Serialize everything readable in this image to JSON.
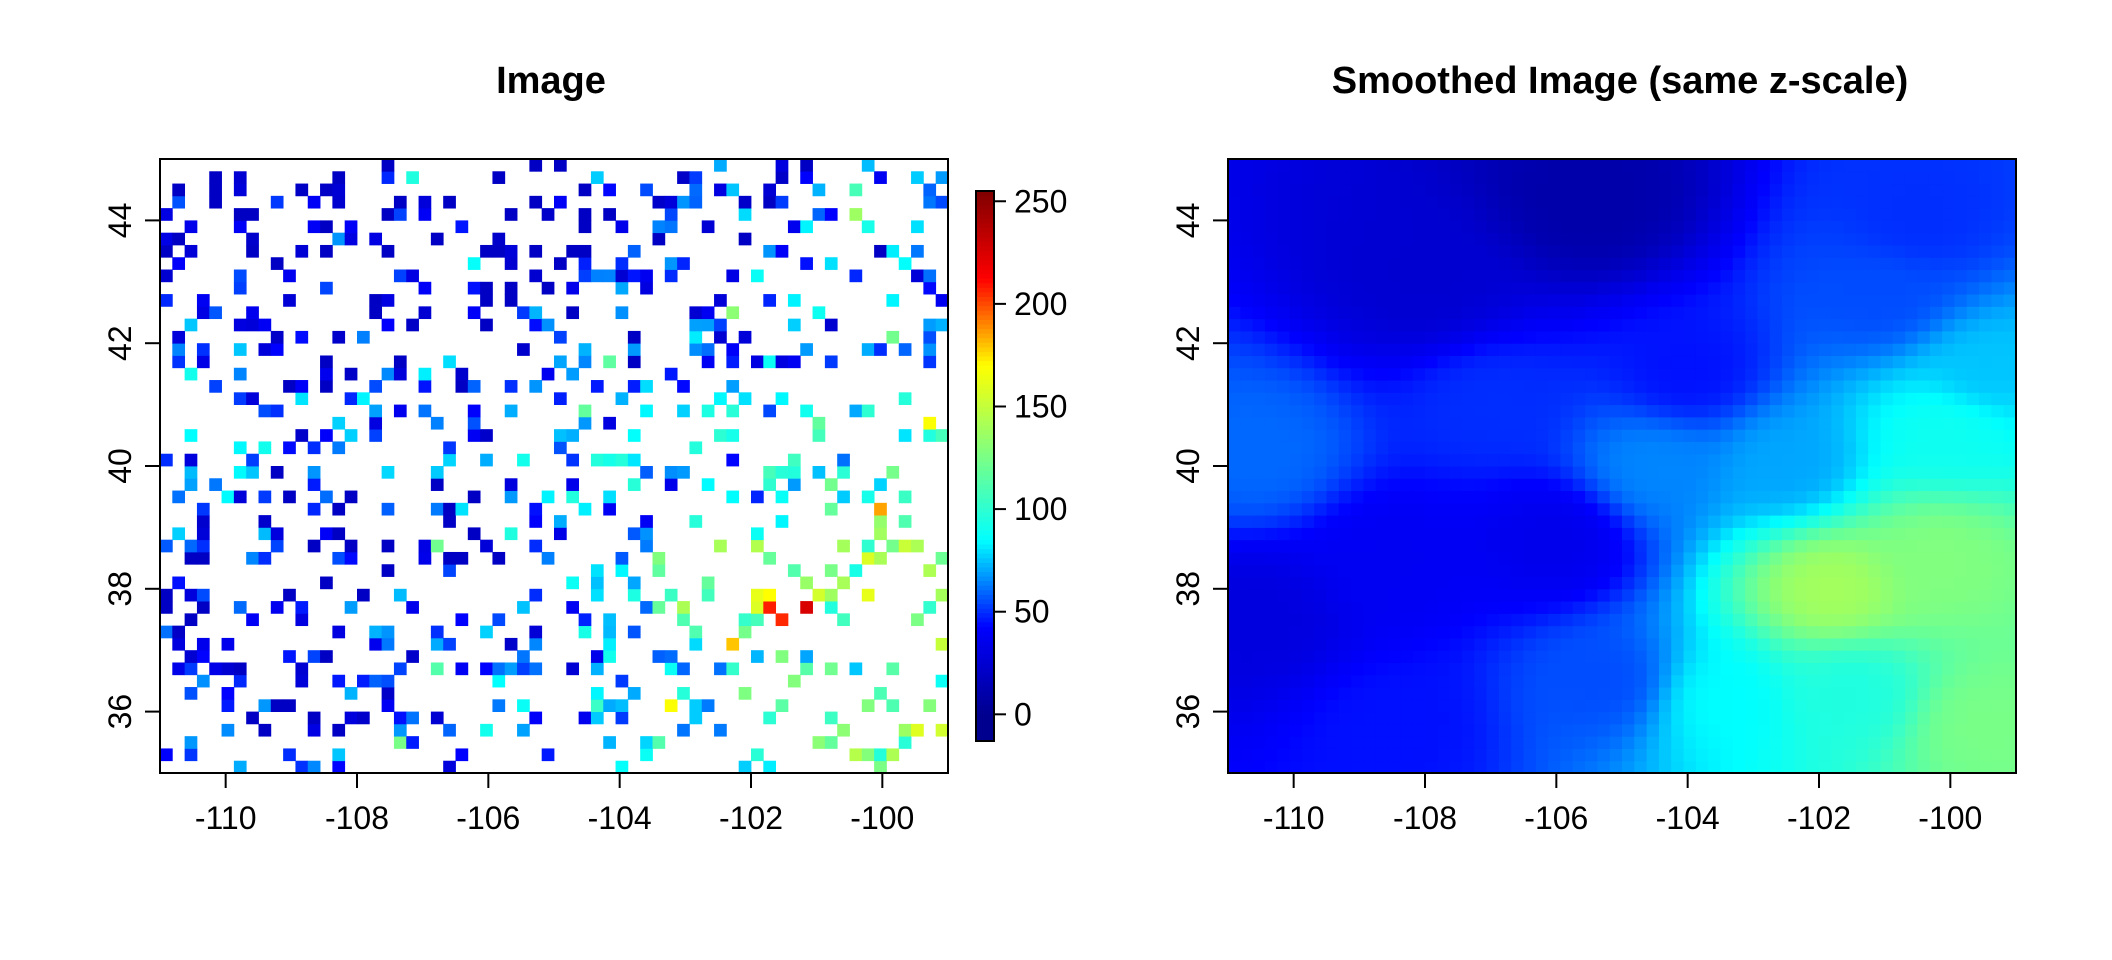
{
  "chart_data": [
    {
      "type": "heatmap",
      "title": "Image",
      "xlabel": "",
      "ylabel": "",
      "xlim": [
        -111,
        -99
      ],
      "ylim": [
        35,
        45
      ],
      "x_ticks": [
        -110,
        -108,
        -106,
        -104,
        -102,
        -100
      ],
      "x_tick_labels": [
        "-110",
        "-108",
        "-106",
        "-104",
        "-102",
        "-100"
      ],
      "y_ticks": [
        36,
        38,
        40,
        42,
        44
      ],
      "y_tick_labels": [
        "36",
        "38",
        "40",
        "42",
        "44"
      ],
      "grid": false,
      "sparse": true,
      "colorbar": {
        "zlim": [
          0,
          255
        ],
        "ticks": [
          0,
          50,
          100,
          150,
          200,
          250
        ],
        "tick_labels": [
          "0",
          "50",
          "100",
          "150",
          "200",
          "250"
        ],
        "palette": [
          "#00008F",
          "#0000FF",
          "#00FFFF",
          "#80FF80",
          "#FFFF00",
          "#FF0000",
          "#800000"
        ]
      },
      "intensity_field_centers": [
        {
          "x": -110.5,
          "y": 37.5,
          "z": 30
        },
        {
          "x": -108,
          "y": 43,
          "z": 25
        },
        {
          "x": -105.5,
          "y": 44.3,
          "z": 10
        },
        {
          "x": -108.5,
          "y": 38.5,
          "z": 38
        },
        {
          "x": -106,
          "y": 38.8,
          "z": 35
        },
        {
          "x": -110.5,
          "y": 40.2,
          "z": 60
        },
        {
          "x": -107,
          "y": 41,
          "z": 50
        },
        {
          "x": -104,
          "y": 41.5,
          "z": 45
        },
        {
          "x": -104.5,
          "y": 40,
          "z": 65
        },
        {
          "x": -101.8,
          "y": 38,
          "z": 140
        },
        {
          "x": -100.2,
          "y": 38.5,
          "z": 128
        },
        {
          "x": -101.5,
          "y": 36.3,
          "z": 95
        },
        {
          "x": -99.5,
          "y": 35.8,
          "z": 125
        },
        {
          "x": -103.5,
          "y": 36.2,
          "z": 85
        },
        {
          "x": -102.5,
          "y": 40,
          "z": 70
        },
        {
          "x": -101,
          "y": 42.8,
          "z": 55
        },
        {
          "x": -100,
          "y": 40.6,
          "z": 90
        },
        {
          "x": -105.2,
          "y": 36.5,
          "z": 55
        },
        {
          "x": -108.5,
          "y": 35.8,
          "z": 45
        },
        {
          "x": -100.5,
          "y": 44,
          "z": 50
        },
        {
          "x": -99.5,
          "y": 41.5,
          "z": 75
        }
      ]
    },
    {
      "type": "heatmap",
      "title": "Smoothed Image (same z-scale)",
      "xlabel": "",
      "ylabel": "",
      "xlim": [
        -111,
        -99
      ],
      "ylim": [
        35,
        45
      ],
      "x_ticks": [
        -110,
        -108,
        -106,
        -104,
        -102,
        -100
      ],
      "x_tick_labels": [
        "-110",
        "-108",
        "-106",
        "-104",
        "-102",
        "-100"
      ],
      "y_ticks": [
        36,
        38,
        40,
        42,
        44
      ],
      "y_tick_labels": [
        "36",
        "38",
        "40",
        "42",
        "44"
      ],
      "grid": false,
      "zlim": [
        0,
        255
      ],
      "smoothed_from": "Image"
    }
  ]
}
